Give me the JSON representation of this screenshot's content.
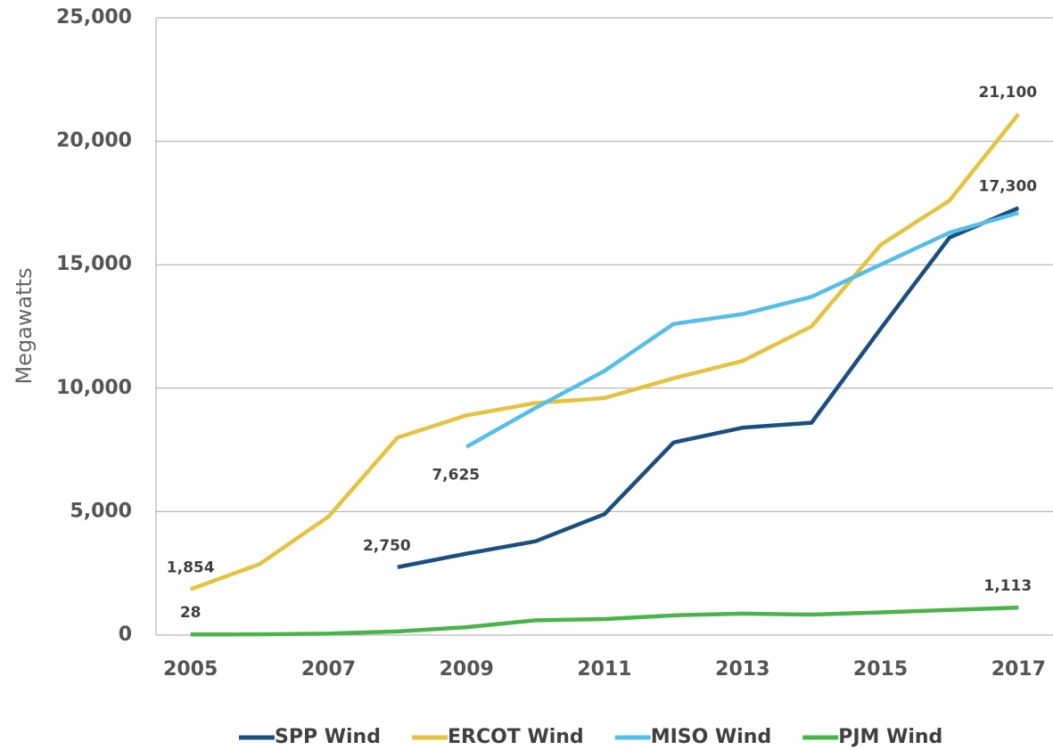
{
  "chart_data": {
    "type": "line",
    "y_label": "Megawatts",
    "x": [
      2005,
      2006,
      2007,
      2008,
      2009,
      2010,
      2011,
      2012,
      2013,
      2014,
      2015,
      2016,
      2017
    ],
    "xlim": [
      2004.5,
      2017.5
    ],
    "xticks": [
      2005,
      2007,
      2009,
      2011,
      2013,
      2015,
      2017
    ],
    "ylim": [
      0,
      25000
    ],
    "yticks": [
      0,
      {
        "value": 5000,
        "label": "5,000"
      },
      {
        "value": 10000,
        "label": "10,000"
      },
      {
        "value": 15000,
        "label": "15,000"
      },
      {
        "value": 20000,
        "label": "20,000"
      },
      {
        "value": 25000,
        "label": "25,000"
      }
    ],
    "grid": true,
    "legend": "bottom",
    "series": [
      {
        "name": "SPP Wind",
        "color": "#1a4f80",
        "values": [
          null,
          null,
          null,
          2750,
          3300,
          3800,
          4900,
          7800,
          8400,
          8600,
          12400,
          16100,
          17300
        ],
        "value_labels": [
          null,
          null,
          null,
          "2,750",
          null,
          null,
          null,
          null,
          null,
          null,
          null,
          null,
          "17,300"
        ]
      },
      {
        "name": "ERCOT Wind",
        "color": "#e5c23f",
        "values": [
          1854,
          2875,
          4800,
          8000,
          8900,
          9400,
          9600,
          10400,
          11100,
          12500,
          15800,
          17600,
          21100
        ],
        "value_labels": [
          "1,854",
          null,
          null,
          null,
          null,
          null,
          null,
          null,
          null,
          null,
          null,
          null,
          "21,100"
        ]
      },
      {
        "name": "MISO Wind",
        "color": "#56bde9",
        "values": [
          null,
          null,
          null,
          null,
          7625,
          9200,
          10700,
          12600,
          13000,
          13700,
          15000,
          16300,
          17100
        ],
        "value_labels": [
          null,
          null,
          null,
          null,
          "7,625",
          null,
          null,
          null,
          null,
          null,
          null,
          null,
          null
        ]
      },
      {
        "name": "PJM Wind",
        "color": "#4bb34b",
        "values": [
          28,
          30,
          60,
          150,
          320,
          600,
          650,
          800,
          870,
          830,
          920,
          1020,
          1113
        ],
        "value_labels": [
          "28",
          null,
          null,
          null,
          null,
          null,
          null,
          null,
          null,
          null,
          null,
          null,
          "1,113"
        ]
      }
    ]
  }
}
